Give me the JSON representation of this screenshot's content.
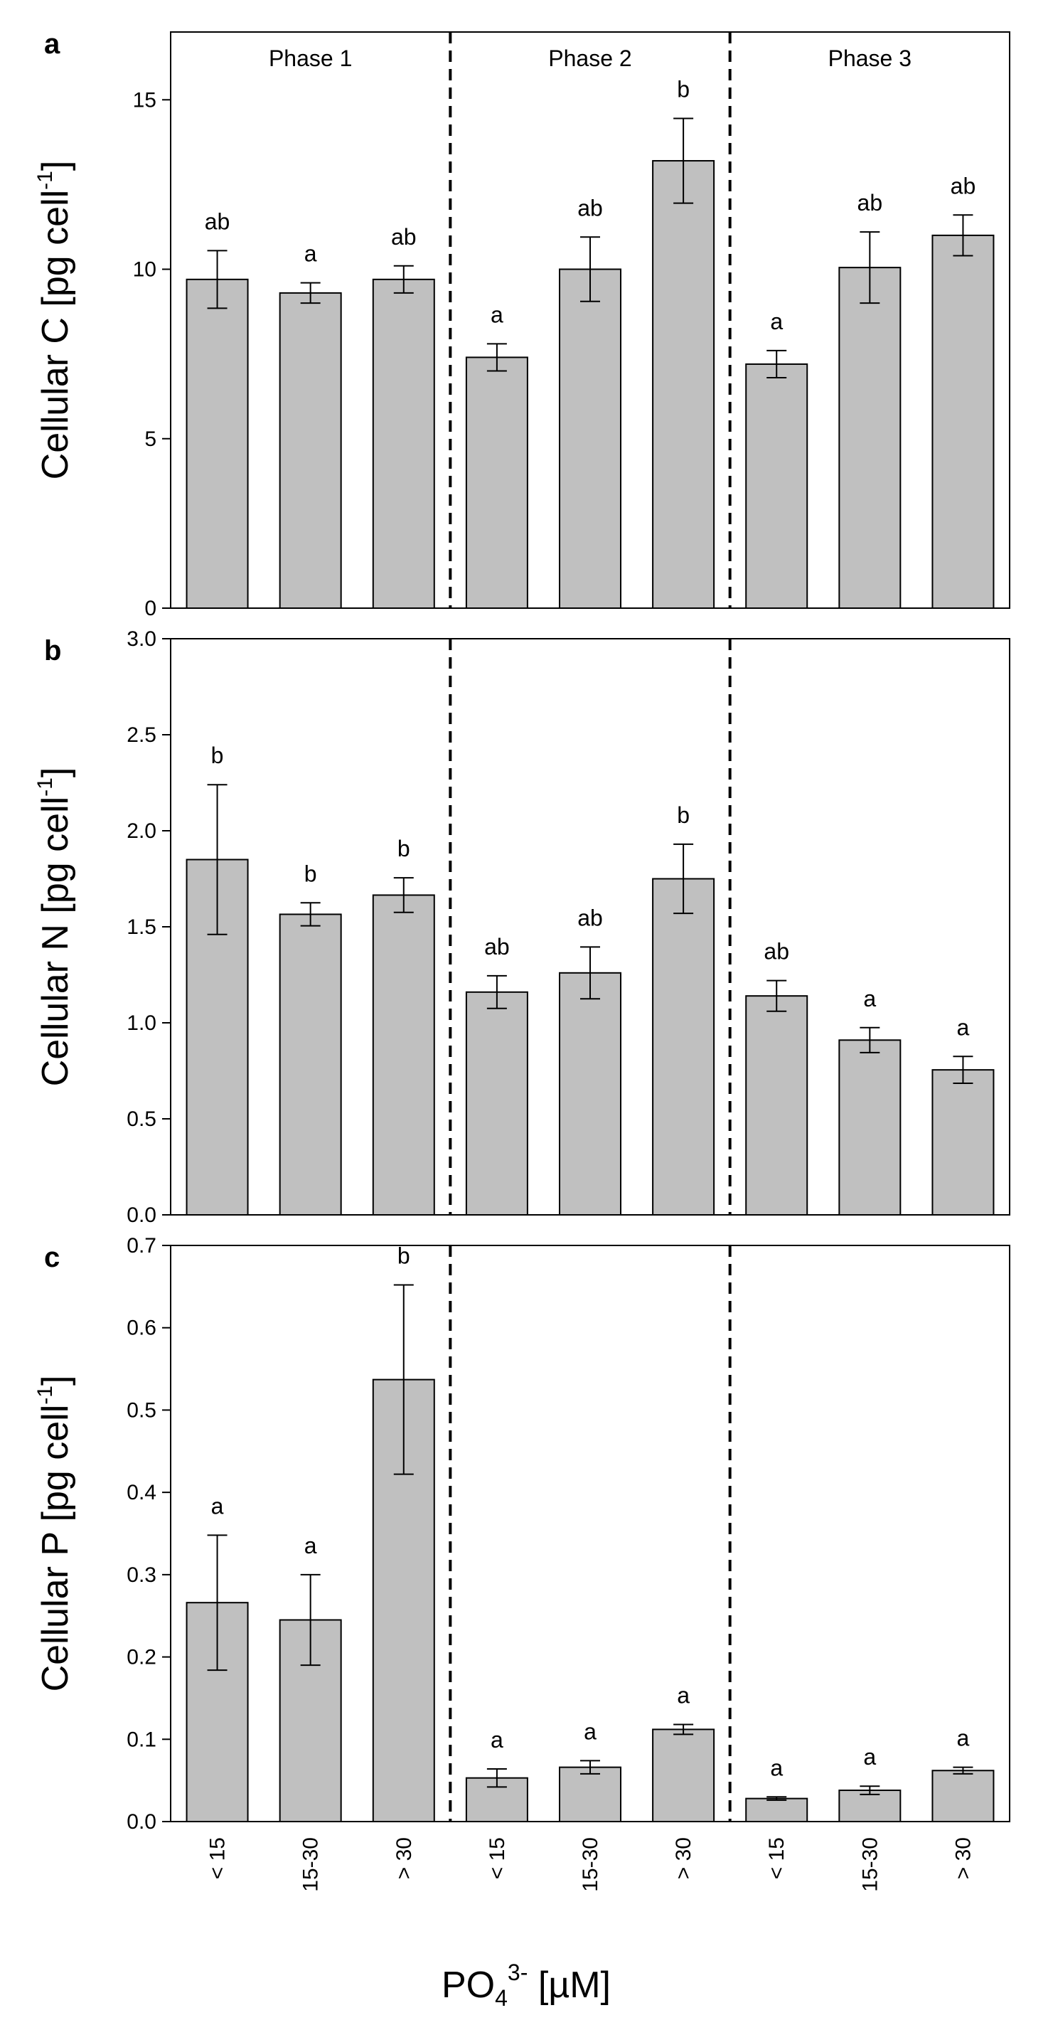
{
  "figure": {
    "x_title": {
      "base": "PO",
      "sub": "4",
      "sup": "3-",
      "unit": " [µM]"
    },
    "categories": [
      "< 15",
      "15-30",
      "> 30",
      "< 15",
      "15-30",
      "> 30",
      "< 15",
      "15-30",
      "> 30"
    ],
    "phases": [
      "Phase 1",
      "Phase 2",
      "Phase 3"
    ],
    "colors": {
      "bar_fill": "#c0c0c0",
      "bar_stroke": "#000000",
      "axis": "#000000",
      "divider": "#000000"
    }
  },
  "chart_data": [
    {
      "type": "bar",
      "panel": "a",
      "ylabel": {
        "main": "Cellular C [pg cell",
        "sup": "-1",
        "end": "]"
      },
      "ylim": [
        0,
        17
      ],
      "yticks": [
        0,
        5,
        10,
        15
      ],
      "ytick_labels": [
        "0",
        "5",
        "10",
        "15"
      ],
      "categories": [
        "< 15",
        "15-30",
        "> 30",
        "< 15",
        "15-30",
        "> 30",
        "< 15",
        "15-30",
        "> 30"
      ],
      "phases": [
        "Phase 1",
        "Phase 2",
        "Phase 3"
      ],
      "values": [
        9.7,
        9.3,
        9.7,
        7.4,
        10.0,
        13.2,
        7.2,
        10.05,
        11.0
      ],
      "errors": [
        0.85,
        0.3,
        0.4,
        0.4,
        0.95,
        1.25,
        0.4,
        1.05,
        0.6
      ],
      "significance": [
        "ab",
        "a",
        "ab",
        "a",
        "ab",
        "b",
        "a",
        "ab",
        "ab"
      ]
    },
    {
      "type": "bar",
      "panel": "b",
      "ylabel": {
        "main": "Cellular N [pg cell",
        "sup": "-1",
        "end": "]"
      },
      "ylim": [
        0,
        3.0
      ],
      "yticks": [
        0,
        0.5,
        1.0,
        1.5,
        2.0,
        2.5,
        3.0
      ],
      "ytick_labels": [
        "0.0",
        "0.5",
        "1.0",
        "1.5",
        "2.0",
        "2.5",
        "3.0"
      ],
      "categories": [
        "< 15",
        "15-30",
        "> 30",
        "< 15",
        "15-30",
        "> 30",
        "< 15",
        "15-30",
        "> 30"
      ],
      "values": [
        1.85,
        1.565,
        1.665,
        1.16,
        1.26,
        1.75,
        1.14,
        0.91,
        0.755
      ],
      "errors": [
        0.39,
        0.06,
        0.09,
        0.085,
        0.135,
        0.18,
        0.08,
        0.065,
        0.07
      ],
      "significance": [
        "b",
        "b",
        "b",
        "ab",
        "ab",
        "b",
        "ab",
        "a",
        "a"
      ]
    },
    {
      "type": "bar",
      "panel": "c",
      "ylabel": {
        "main": "Cellular P [pg cell",
        "sup": "-1",
        "end": "]"
      },
      "ylim": [
        0,
        0.7
      ],
      "yticks": [
        0,
        0.1,
        0.2,
        0.3,
        0.4,
        0.5,
        0.6,
        0.7
      ],
      "ytick_labels": [
        "0.0",
        "0.1",
        "0.2",
        "0.3",
        "0.4",
        "0.5",
        "0.6",
        "0.7"
      ],
      "categories": [
        "< 15",
        "15-30",
        "> 30",
        "< 15",
        "15-30",
        "> 30",
        "< 15",
        "15-30",
        "> 30"
      ],
      "values": [
        0.266,
        0.245,
        0.537,
        0.053,
        0.066,
        0.112,
        0.028,
        0.038,
        0.062
      ],
      "errors": [
        0.082,
        0.055,
        0.115,
        0.011,
        0.008,
        0.006,
        0.002,
        0.005,
        0.004
      ],
      "significance": [
        "a",
        "a",
        "b",
        "a",
        "a",
        "a",
        "a",
        "a",
        "a"
      ]
    }
  ]
}
